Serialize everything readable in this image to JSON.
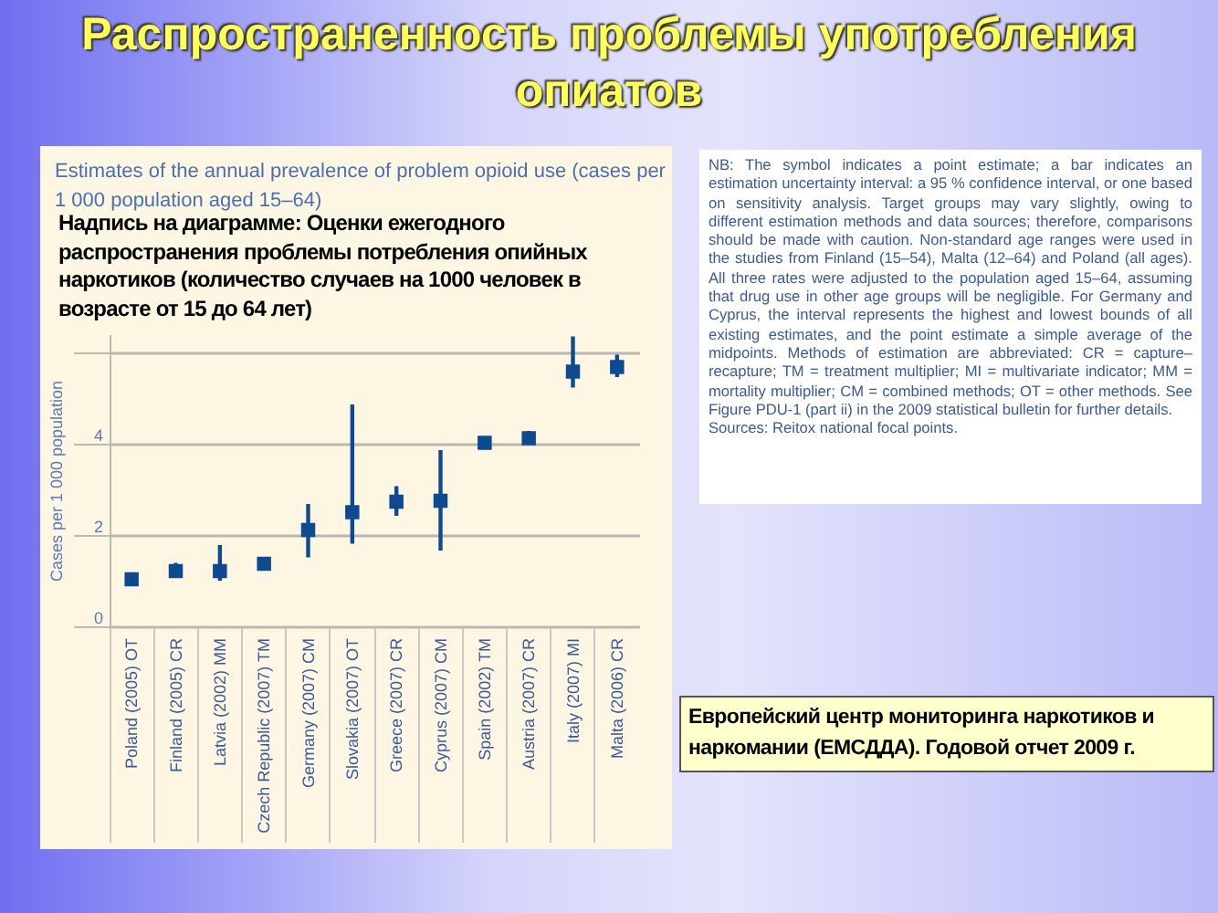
{
  "chart_data": {
    "type": "scatter",
    "title": "Распространенность проблемы употребления опиатов",
    "subtitle": "Estimates of the annual prevalence of problem opioid use (cases per 1 000 population aged 15–64)",
    "ylabel": "Cases per 1 000 population",
    "categories": [
      "Poland (2005) OT",
      "Finland (2005) CR",
      "Latvia (2002) MM",
      "Czech Republic (2007) TM",
      "Germany (2007) CM",
      "Slovakia (2007) OT",
      "Greece (2007) CR",
      "Cyprus (2007) CM",
      "Spain (2002) TM",
      "Austria (2007) CR",
      "Italy (2007) MI",
      "Malta (2006) CR"
    ],
    "series": [
      {
        "color": "#0d4a8f",
        "values": [
          1.03,
          1.21,
          1.21,
          1.37,
          2.11,
          2.5,
          2.73,
          2.75,
          4.02,
          4.12,
          5.58,
          5.68
        ],
        "errors": [
          null,
          [
            1.07,
            1.39
          ],
          [
            1.0,
            1.78
          ],
          null,
          [
            1.51,
            2.68
          ],
          [
            1.81,
            4.86
          ],
          [
            2.42,
            3.07
          ],
          [
            1.66,
            3.86
          ],
          null,
          [
            3.98,
            4.28
          ],
          [
            5.23,
            6.35
          ],
          [
            5.46,
            5.95
          ]
        ]
      }
    ],
    "ylim": [
      0,
      6.4
    ],
    "yticks": [
      0,
      2,
      4,
      {
        "value": 6,
        "label": null
      }
    ],
    "grid": "y",
    "marker": "square",
    "annotations": [
      "Надпись на диаграмме: Оценки ежегодного распространения проблемы потребления опийных наркотиков (количество случаев на 1000 человек в возрасте от 15 до 64 лет)",
      "NB: The symbol indicates a point estimate; a bar indicates an estimation uncertainty interval: a 95 % confidence interval, or one based on sensitivity analysis. Target groups may vary slightly, owing to different estimation methods and data sources; therefore, comparisons should be made with caution. Non-standard age ranges were used in the studies from Finland (15–54), Malta (12–64) and Poland (all ages). All three rates were adjusted to the population aged 15–64, assuming that drug use in other age groups will be negligible. For Germany and Cyprus, the interval represents the highest and lowest bounds of all existing estimates, and the point estimate a simple average of the midpoints. Methods of estimation are abbreviated: CR = capture–recapture; TM = treatment multiplier; MI = multivariate indicator; MM = mortality multiplier; CM = combined methods; OT = other methods. See Figure PDU-1 (part ii) in the 2009 statistical bulletin for further details.",
      "Sources: Reitox national focal points.",
      "Европейский центр мониторинга наркотиков и наркомании (ЕМСДДА). Годовой отчет 2009 г."
    ]
  }
}
